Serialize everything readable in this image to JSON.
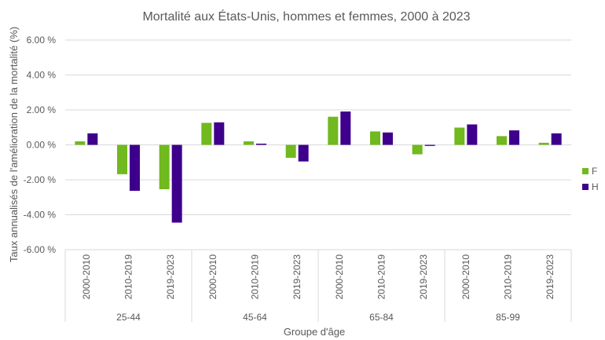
{
  "chart_data": {
    "type": "bar",
    "title": "Mortalité aux États-Unis, hommes et femmes, 2000 à 2023",
    "xlabel": "Groupe d'âge",
    "ylabel": "Taux annualisés de l'amélioration de la mortalité (%)",
    "ylim": [
      -6,
      6
    ],
    "yticks": [
      "6.00 %",
      "4.00 %",
      "2.00 %",
      "0.00 %",
      "-2.00 %",
      "-4.00 %",
      "-6.00 %"
    ],
    "ytick_values": [
      6,
      4,
      2,
      0,
      -2,
      -4,
      -6
    ],
    "grid": true,
    "legend_position": "right",
    "groups": [
      "25-44",
      "45-64",
      "65-84",
      "85-99"
    ],
    "categories": [
      "2000-2010",
      "2010-2019",
      "2019-2023",
      "2000-2010",
      "2010-2019",
      "2019-2023",
      "2000-2010",
      "2010-2019",
      "2019-2023",
      "2000-2010",
      "2010-2019",
      "2019-2023"
    ],
    "series": [
      {
        "name": "F",
        "color": "#70B91E",
        "values": [
          0.2,
          -1.68,
          -2.54,
          1.26,
          0.2,
          -0.74,
          1.61,
          0.77,
          -0.54,
          0.99,
          0.5,
          0.12
        ]
      },
      {
        "name": "H",
        "color": "#3E008C",
        "values": [
          0.66,
          -2.63,
          -4.45,
          1.29,
          0.07,
          -0.95,
          1.91,
          0.71,
          -0.06,
          1.17,
          0.83,
          0.66
        ]
      }
    ]
  }
}
